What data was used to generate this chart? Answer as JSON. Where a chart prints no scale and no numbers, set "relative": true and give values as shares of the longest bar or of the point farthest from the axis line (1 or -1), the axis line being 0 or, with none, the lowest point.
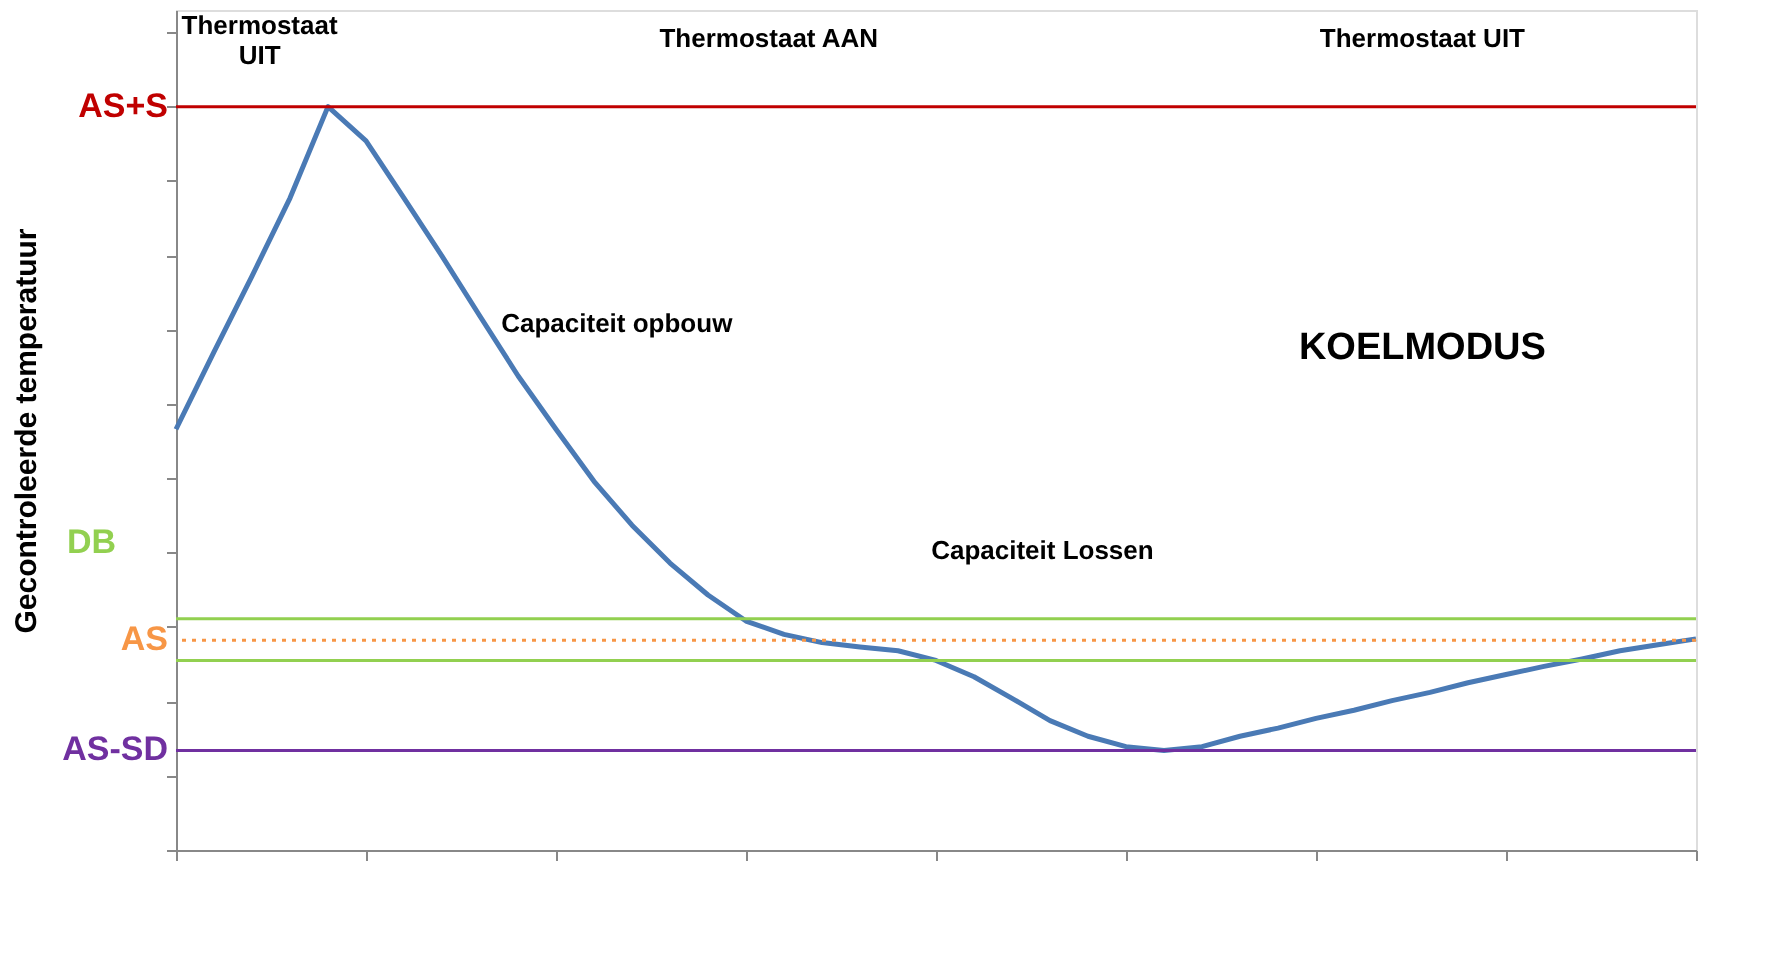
{
  "chart_data": {
    "type": "line",
    "relative": true,
    "ylabel": "Gecontroleerde temperatuur",
    "tick_labels": false,
    "categories": [
      null,
      null,
      null,
      null,
      null,
      null,
      null,
      null,
      null,
      null,
      null,
      null,
      null,
      null,
      null,
      null,
      null,
      null,
      null,
      null,
      null,
      null,
      null,
      null,
      null,
      null,
      null,
      null,
      null,
      null,
      null,
      null,
      null,
      null,
      null,
      null,
      null,
      null,
      null,
      null,
      null
    ],
    "series": [
      {
        "color": "#4a7ab5",
        "values": [
          0.566,
          0.67,
          0.772,
          0.877,
          1,
          0.954,
          0.877,
          0.799,
          0.718,
          0.638,
          0.566,
          0.496,
          0.437,
          0.386,
          0.343,
          0.308,
          0.29,
          0.279,
          0.273,
          0.268,
          0.255,
          0.233,
          0.204,
          0.174,
          0.153,
          0.139,
          0.134,
          0.139,
          0.153,
          0.164,
          0.177,
          0.188,
          0.201,
          0.212,
          0.225,
          0.236,
          0.247,
          0.257,
          0.268,
          0.276,
          0.284
        ]
      }
    ],
    "ref_lines": [
      {
        "axis": "y",
        "value": 1,
        "label": "AS+S",
        "color": "#c00000",
        "line_style": "solid"
      },
      {
        "axis": "y",
        "value": 0.282,
        "label": "AS",
        "color": "#f79646",
        "line_style": "dotted"
      },
      {
        "axis": "y",
        "value": 0.134,
        "label": "AS-SD",
        "color": "#7030a0",
        "line_style": "solid"
      },
      {
        "axis": "y",
        "value": 0.311,
        "label": "DB",
        "color": "#92d050",
        "line_style": "solid"
      },
      {
        "axis": "y",
        "value": 0.255,
        "color": "#92d050",
        "line_style": "solid"
      }
    ],
    "annotations": [
      "Thermostaat\nUIT",
      "Thermostaat AAN",
      "Thermostaat UIT",
      "Capaciteit opbouw",
      "Capaciteit Lossen",
      "KOELMODUS"
    ],
    "line_style": "solid",
    "marker": "none",
    "grid": false
  }
}
